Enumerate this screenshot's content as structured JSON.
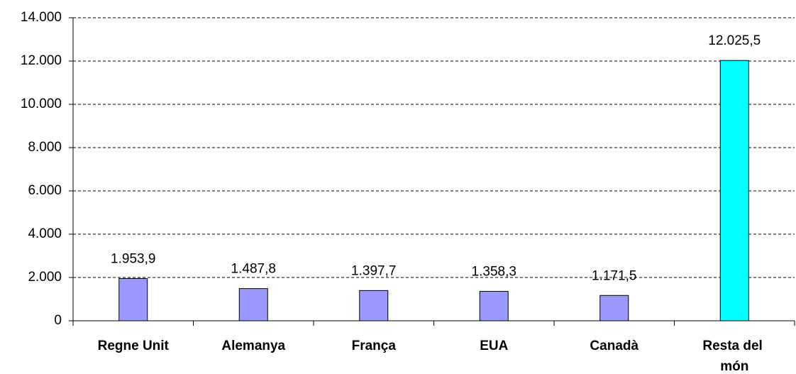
{
  "chart_data": {
    "type": "bar",
    "categories": [
      "Regne Unit",
      "Alemanya",
      "França",
      "EUA",
      "Canadà",
      "Resta del món"
    ],
    "values": [
      1953.9,
      1487.8,
      1397.7,
      1358.3,
      1171.5,
      12025.5
    ],
    "value_labels": [
      "1.953,9",
      "1.487,8",
      "1.397,7",
      "1.358,3",
      "1.171,5",
      "12.025,5"
    ],
    "colors": [
      "#9999ff",
      "#9999ff",
      "#9999ff",
      "#9999ff",
      "#9999ff",
      "#00ffff"
    ],
    "ylim": [
      0,
      14000
    ],
    "yticks": [
      0,
      {
        "value": 2000,
        "label": "2.000"
      },
      {
        "value": 4000,
        "label": "4.000"
      },
      {
        "value": 6000,
        "label": "6.000"
      },
      {
        "value": 8000,
        "label": "8.000"
      },
      {
        "value": 10000,
        "label": "10.000"
      },
      {
        "value": 12000,
        "label": "12.000"
      },
      {
        "value": 14000,
        "label": "14.000"
      }
    ],
    "grid": true
  }
}
